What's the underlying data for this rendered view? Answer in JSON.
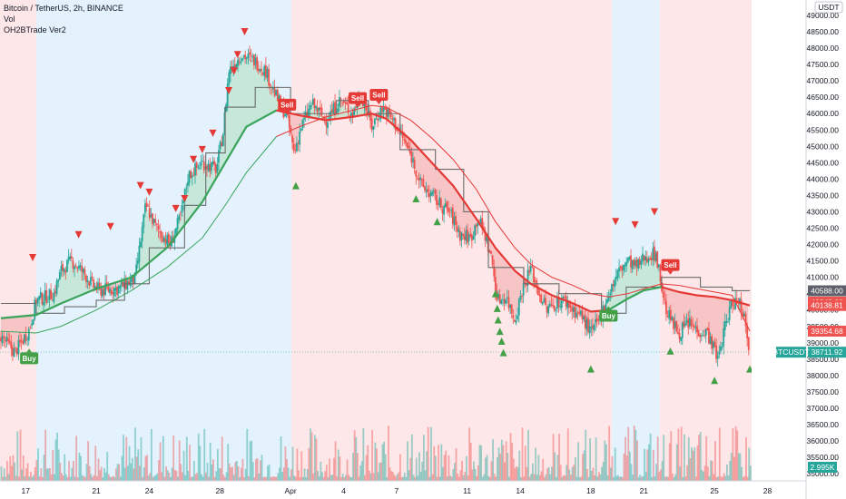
{
  "legend": {
    "symbol_line": "Bitcoin / TetherUS, 2h, BINANCE",
    "vol_label": "Vol",
    "indicator_label": "OH2BTrade Ver2"
  },
  "colors": {
    "up": "#26a69a",
    "down": "#ef5350",
    "bg_blue": "#e3f2fd",
    "bg_red": "#fde7e9",
    "buy": "#43a047",
    "sell": "#e53935",
    "cloud_green": "#b9e2c9",
    "cloud_red": "#f4b6b6",
    "ema_green": "#3aa45b",
    "ema_red": "#e53935",
    "base_line": "#6b6b6b",
    "tag_dark": "#5d606b",
    "tag_red": "#ef5350",
    "tag_green": "#26a69a"
  },
  "currency_label": "USDT",
  "chart_data": {
    "type": "candlestick",
    "title": "Bitcoin / TetherUS, 2h, BINANCE",
    "y_ticks": [
      35000,
      35500,
      36000,
      36500,
      37000,
      37500,
      38000,
      38500,
      39000,
      39500,
      40000,
      40500,
      41000,
      41500,
      42000,
      42500,
      43000,
      43500,
      44000,
      44500,
      45000,
      45500,
      46000,
      46500,
      47000,
      47500,
      48000,
      48500,
      49000
    ],
    "ylim": [
      34800,
      49300
    ],
    "x_ticks": [
      {
        "label": "17",
        "day": 0
      },
      {
        "label": "21",
        "day": 4
      },
      {
        "label": "24",
        "day": 7
      },
      {
        "label": "28",
        "day": 11
      },
      {
        "label": "Apr",
        "day": 15
      },
      {
        "label": "4",
        "day": 18
      },
      {
        "label": "7",
        "day": 21
      },
      {
        "label": "11",
        "day": 25
      },
      {
        "label": "14",
        "day": 28
      },
      {
        "label": "18",
        "day": 32
      },
      {
        "label": "21",
        "day": 35
      },
      {
        "label": "25",
        "day": 39
      },
      {
        "label": "28",
        "day": 42
      }
    ],
    "xlim_days": [
      -1.45,
      41.1
    ],
    "price_path": [
      [
        -1.4,
        39200
      ],
      [
        -0.6,
        38700
      ],
      [
        0.2,
        39400
      ],
      [
        0.6,
        40300
      ],
      [
        1.6,
        40500
      ],
      [
        2.0,
        41200
      ],
      [
        2.6,
        41500
      ],
      [
        3.0,
        41300
      ],
      [
        3.4,
        41050
      ],
      [
        3.8,
        40750
      ],
      [
        4.2,
        40600
      ],
      [
        5.2,
        40650
      ],
      [
        6.2,
        40950
      ],
      [
        6.8,
        43200
      ],
      [
        7.4,
        42500
      ],
      [
        8.2,
        42000
      ],
      [
        8.8,
        42900
      ],
      [
        9.2,
        44100
      ],
      [
        10.0,
        44500
      ],
      [
        10.8,
        44300
      ],
      [
        11.2,
        45500
      ],
      [
        11.5,
        47300
      ],
      [
        12.2,
        47800
      ],
      [
        13.0,
        47600
      ],
      [
        13.6,
        47300
      ],
      [
        14.2,
        46500
      ],
      [
        14.8,
        45900
      ],
      [
        15.2,
        44800
      ],
      [
        15.6,
        45600
      ],
      [
        16.2,
        46300
      ],
      [
        17.0,
        45800
      ],
      [
        17.8,
        46400
      ],
      [
        18.5,
        46000
      ],
      [
        19.0,
        46600
      ],
      [
        19.6,
        45600
      ],
      [
        20.2,
        46200
      ],
      [
        20.8,
        45800
      ],
      [
        21.4,
        45200
      ],
      [
        21.9,
        44600
      ],
      [
        22.4,
        43800
      ],
      [
        23.0,
        43500
      ],
      [
        23.5,
        43200
      ],
      [
        24.0,
        43000
      ],
      [
        24.6,
        42300
      ],
      [
        25.2,
        42200
      ],
      [
        25.6,
        42800
      ],
      [
        26.0,
        42300
      ],
      [
        26.4,
        41500
      ],
      [
        26.7,
        40300
      ],
      [
        27.2,
        40400
      ],
      [
        27.7,
        39700
      ],
      [
        28.1,
        40600
      ],
      [
        28.6,
        41300
      ],
      [
        29.0,
        40600
      ],
      [
        29.5,
        40000
      ],
      [
        30.0,
        40200
      ],
      [
        30.5,
        40300
      ],
      [
        31.0,
        40000
      ],
      [
        31.5,
        39800
      ],
      [
        32.0,
        39300
      ],
      [
        32.5,
        39700
      ],
      [
        33.0,
        40500
      ],
      [
        33.6,
        41200
      ],
      [
        34.1,
        41500
      ],
      [
        34.6,
        41300
      ],
      [
        35.0,
        41600
      ],
      [
        35.4,
        41700
      ],
      [
        35.7,
        41700
      ],
      [
        36.2,
        40100
      ],
      [
        36.6,
        39600
      ],
      [
        37.0,
        39300
      ],
      [
        37.5,
        39600
      ],
      [
        38.0,
        39400
      ],
      [
        38.6,
        39300
      ],
      [
        39.2,
        38500
      ],
      [
        39.6,
        39500
      ],
      [
        40.0,
        40250
      ],
      [
        40.4,
        40300
      ],
      [
        40.7,
        39800
      ],
      [
        41.0,
        38712
      ]
    ],
    "ema_fast": [
      [
        -1.4,
        39750
      ],
      [
        0.6,
        39850
      ],
      [
        2.0,
        40200
      ],
      [
        4.0,
        40650
      ],
      [
        6.0,
        41000
      ],
      [
        8.0,
        41900
      ],
      [
        10.0,
        43300
      ],
      [
        11.3,
        44500
      ],
      [
        12.5,
        45600
      ],
      [
        14.2,
        46100
      ],
      [
        15.5,
        45950
      ],
      [
        17.0,
        45800
      ],
      [
        18.5,
        45900
      ],
      [
        19.6,
        46000
      ],
      [
        20.4,
        45850
      ],
      [
        21.8,
        45200
      ],
      [
        23.0,
        44500
      ],
      [
        24.2,
        43800
      ],
      [
        25.5,
        42800
      ],
      [
        26.6,
        41900
      ],
      [
        27.7,
        41200
      ],
      [
        28.6,
        40800
      ],
      [
        29.8,
        40450
      ],
      [
        31.0,
        40200
      ],
      [
        32.0,
        39950
      ],
      [
        33.0,
        40000
      ],
      [
        34.1,
        40350
      ],
      [
        35.0,
        40600
      ],
      [
        36.0,
        40700
      ],
      [
        37.0,
        40550
      ],
      [
        38.0,
        40450
      ],
      [
        39.0,
        40400
      ],
      [
        40.0,
        40300
      ],
      [
        41.0,
        40140
      ]
    ],
    "ema_slow": [
      [
        -1.4,
        39350
      ],
      [
        0.6,
        39300
      ],
      [
        2.0,
        39500
      ],
      [
        4.0,
        40000
      ],
      [
        6.0,
        40600
      ],
      [
        8.0,
        41300
      ],
      [
        10.0,
        42200
      ],
      [
        11.3,
        43200
      ],
      [
        12.5,
        44200
      ],
      [
        14.2,
        45300
      ],
      [
        15.5,
        45600
      ],
      [
        17.0,
        45900
      ],
      [
        18.5,
        46100
      ],
      [
        19.6,
        46250
      ],
      [
        20.4,
        46200
      ],
      [
        21.8,
        45800
      ],
      [
        23.0,
        45250
      ],
      [
        24.2,
        44600
      ],
      [
        25.5,
        43700
      ],
      [
        26.6,
        42700
      ],
      [
        27.7,
        41900
      ],
      [
        28.6,
        41400
      ],
      [
        29.8,
        41000
      ],
      [
        31.0,
        40750
      ],
      [
        32.0,
        40500
      ],
      [
        33.0,
        40400
      ],
      [
        34.1,
        40500
      ],
      [
        35.0,
        40650
      ],
      [
        36.0,
        40800
      ],
      [
        37.0,
        40750
      ],
      [
        38.0,
        40650
      ],
      [
        39.0,
        40550
      ],
      [
        40.0,
        40450
      ],
      [
        41.0,
        39355
      ]
    ],
    "base_line": [
      [
        -1.4,
        40200
      ],
      [
        0.6,
        40200
      ],
      [
        0.6,
        39900
      ],
      [
        2.2,
        39900
      ],
      [
        2.2,
        40100
      ],
      [
        4.0,
        40100
      ],
      [
        4.0,
        40300
      ],
      [
        5.6,
        40300
      ],
      [
        5.6,
        40800
      ],
      [
        7.0,
        40800
      ],
      [
        7.0,
        41900
      ],
      [
        9.0,
        41900
      ],
      [
        9.0,
        43200
      ],
      [
        10.2,
        43200
      ],
      [
        10.2,
        44800
      ],
      [
        11.3,
        44800
      ],
      [
        11.3,
        46200
      ],
      [
        13.0,
        46200
      ],
      [
        13.0,
        46800
      ],
      [
        15.0,
        46800
      ],
      [
        15.0,
        46000
      ],
      [
        17.6,
        46000
      ],
      [
        17.6,
        46400
      ],
      [
        19.4,
        46400
      ],
      [
        19.4,
        46000
      ],
      [
        21.2,
        46000
      ],
      [
        21.2,
        44900
      ],
      [
        23.2,
        44900
      ],
      [
        23.2,
        44300
      ],
      [
        24.8,
        44300
      ],
      [
        24.8,
        43000
      ],
      [
        26.2,
        43000
      ],
      [
        26.2,
        41300
      ],
      [
        28.2,
        41300
      ],
      [
        28.2,
        40800
      ],
      [
        30.2,
        40800
      ],
      [
        30.2,
        40500
      ],
      [
        32.6,
        40500
      ],
      [
        32.6,
        39900
      ],
      [
        34.0,
        39900
      ],
      [
        34.0,
        40700
      ],
      [
        36.0,
        40700
      ],
      [
        36.0,
        41000
      ],
      [
        38.2,
        41000
      ],
      [
        38.2,
        40700
      ],
      [
        40.0,
        40700
      ],
      [
        40.0,
        40590
      ],
      [
        41.0,
        40590
      ]
    ],
    "backgrounds": [
      {
        "from": -1.45,
        "to": 0.6,
        "color": "red"
      },
      {
        "from": 0.6,
        "to": 15.05,
        "color": "blue"
      },
      {
        "from": 15.05,
        "to": 33.2,
        "color": "red"
      },
      {
        "from": 33.2,
        "to": 35.9,
        "color": "blue"
      },
      {
        "from": 35.9,
        "to": 41.1,
        "color": "red"
      }
    ],
    "sell_triangles": [
      [
        0.4,
        41600
      ],
      [
        3.0,
        42300
      ],
      [
        4.8,
        42550
      ],
      [
        6.5,
        43800
      ],
      [
        7.0,
        43600
      ],
      [
        8.5,
        43100
      ],
      [
        9.0,
        43400
      ],
      [
        9.5,
        44600
      ],
      [
        10.0,
        44900
      ],
      [
        10.6,
        45400
      ],
      [
        11.5,
        46700
      ],
      [
        11.8,
        47300
      ],
      [
        12.0,
        47800
      ],
      [
        12.4,
        48500
      ],
      [
        33.4,
        42700
      ],
      [
        34.5,
        42600
      ],
      [
        35.6,
        43000
      ]
    ],
    "buy_triangles": [
      [
        15.3,
        43800
      ],
      [
        22.1,
        43400
      ],
      [
        23.3,
        42700
      ],
      [
        26.6,
        40500
      ],
      [
        26.7,
        40050
      ],
      [
        26.75,
        39700
      ],
      [
        26.85,
        39350
      ],
      [
        26.95,
        39050
      ],
      [
        27.05,
        38700
      ],
      [
        32.0,
        38200
      ],
      [
        36.5,
        38750
      ],
      [
        39.0,
        37850
      ],
      [
        41.0,
        38200
      ]
    ],
    "sell_labels": [
      {
        "day": 14.8,
        "price": 45900,
        "text": "Sell"
      },
      {
        "day": 18.8,
        "price": 46100,
        "text": "Sell"
      },
      {
        "day": 20.0,
        "price": 46200,
        "text": "Sell"
      },
      {
        "day": 36.5,
        "price": 41000,
        "text": "Sell"
      }
    ],
    "buy_labels": [
      {
        "day": 0.2,
        "price": 38900,
        "text": "Buy"
      },
      {
        "day": 33.0,
        "price": 40200,
        "text": "Buy"
      }
    ],
    "price_tags": [
      {
        "price": 40588.0,
        "text": "40588.00",
        "color": "dark"
      },
      {
        "price": 40243.6,
        "text": "40243.60",
        "color": "red"
      },
      {
        "price": 40138.81,
        "text": "40138.81",
        "color": "red"
      },
      {
        "price": 39354.68,
        "text": "39354.68",
        "color": "red"
      },
      {
        "price": 38711.92,
        "text": "38711.92",
        "color": "green"
      }
    ],
    "symbol_tag": {
      "text": "BTCUSDT",
      "price": 38711.92
    },
    "volume_tag": {
      "text": "2.995K"
    }
  }
}
